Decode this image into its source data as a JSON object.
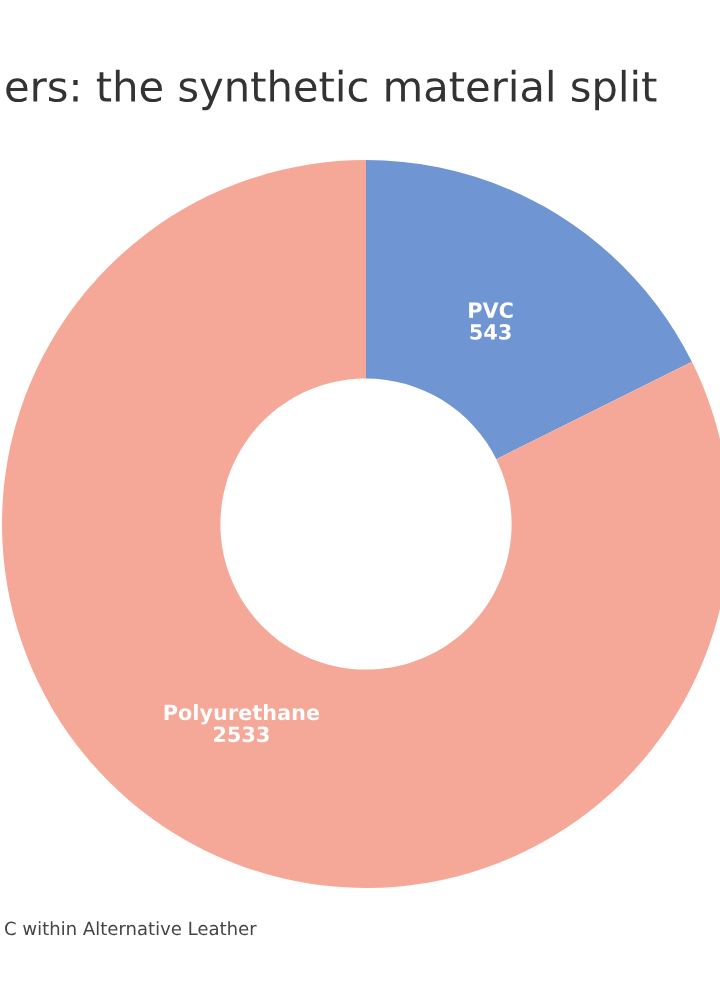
{
  "chart_data": {
    "type": "donut",
    "title": "ers: the synthetic material split",
    "categories": [
      "PVC",
      "Polyurethane"
    ],
    "values": [
      543,
      2533
    ],
    "colors": [
      "#6f96d2",
      "#f6a898"
    ],
    "data_labels": true,
    "annotations": [
      "C within Alternative Leather"
    ]
  }
}
